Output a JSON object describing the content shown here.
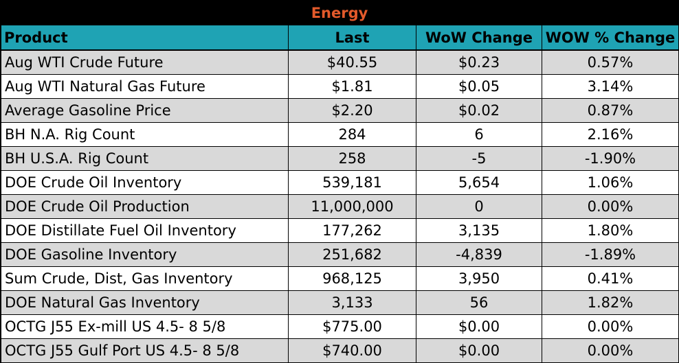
{
  "title": "Energy",
  "headers": {
    "product": "Product",
    "last": "Last",
    "wow_change": "WoW Change",
    "wow_pct_change": "WOW % Change"
  },
  "rows": [
    {
      "product": "Aug WTI Crude Future",
      "last": "$40.55",
      "wow_change": "$0.23",
      "wow_pct_change": "0.57%"
    },
    {
      "product": "Aug WTI Natural Gas Future",
      "last": "$1.81",
      "wow_change": "$0.05",
      "wow_pct_change": "3.14%"
    },
    {
      "product": "Average Gasoline Price",
      "last": "$2.20",
      "wow_change": "$0.02",
      "wow_pct_change": "0.87%"
    },
    {
      "product": "BH N.A. Rig Count",
      "last": "284",
      "wow_change": "6",
      "wow_pct_change": "2.16%"
    },
    {
      "product": "BH U.S.A. Rig Count",
      "last": "258",
      "wow_change": "-5",
      "wow_pct_change": "-1.90%"
    },
    {
      "product": "DOE Crude Oil Inventory",
      "last": "539,181",
      "wow_change": "5,654",
      "wow_pct_change": "1.06%"
    },
    {
      "product": "DOE Crude Oil Production",
      "last": "11,000,000",
      "wow_change": "0",
      "wow_pct_change": "0.00%"
    },
    {
      "product": "DOE Distillate Fuel Oil Inventory",
      "last": "177,262",
      "wow_change": "3,135",
      "wow_pct_change": "1.80%"
    },
    {
      "product": "DOE Gasoline Inventory",
      "last": "251,682",
      "wow_change": "-4,839",
      "wow_pct_change": "-1.89%"
    },
    {
      "product": "Sum Crude, Dist, Gas Inventory",
      "last": "968,125",
      "wow_change": "3,950",
      "wow_pct_change": "0.41%"
    },
    {
      "product": "DOE Natural Gas Inventory",
      "last": "3,133",
      "wow_change": "56",
      "wow_pct_change": "1.82%"
    },
    {
      "product": "OCTG J55 Ex-mill US 4.5- 8 5/8",
      "last": "$775.00",
      "wow_change": "$0.00",
      "wow_pct_change": "0.00%"
    },
    {
      "product": "OCTG J55 Gulf Port US 4.5- 8 5/8",
      "last": "$740.00",
      "wow_change": "$0.00",
      "wow_pct_change": "0.00%"
    }
  ],
  "colors": {
    "title_background": "#000000",
    "title_text": "#e35a2b",
    "header_background": "#1fa3b4",
    "shaded_row": "#d9d9d9",
    "plain_row": "#ffffff"
  }
}
